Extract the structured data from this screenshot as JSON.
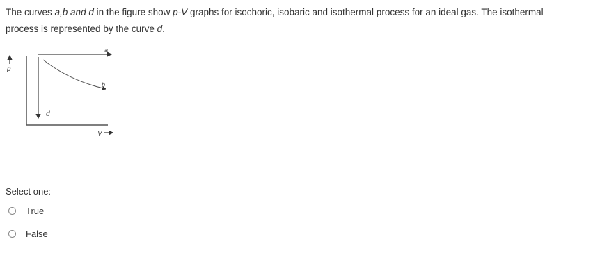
{
  "question": {
    "lines": [
      [
        "The curves ",
        "a,b and d",
        " in the figure show ",
        "p-V",
        " graphs for isochoric, isobaric and isothermal process for an ideal gas. The isothermal"
      ],
      [
        "process is represented by the curve ",
        "d",
        "."
      ]
    ],
    "figure": {
      "labels": {
        "a": "a",
        "b": "b",
        "d": "d",
        "p": "p",
        "v": "V"
      }
    },
    "prompt": "Select one:",
    "options": [
      "True",
      "False"
    ]
  }
}
